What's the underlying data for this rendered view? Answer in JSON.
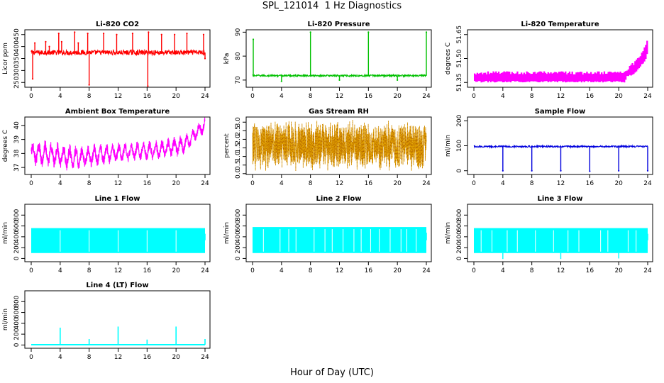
{
  "figure": {
    "title": "SPL_121014  1 Hz Diagnostics",
    "xlabel": "Hour of Day (UTC)"
  },
  "chart_data": [
    {
      "type": "line",
      "title": "Li-820 CO2",
      "ylabel": "Licor ppm",
      "color": "#ff0000",
      "xlim": [
        0,
        24
      ],
      "ylim": [
        230,
        470
      ],
      "x_ticks": [
        0,
        4,
        8,
        12,
        16,
        20,
        24
      ],
      "y_ticks": [
        250,
        300,
        350,
        400,
        450
      ],
      "series": [
        {
          "baseline": 375,
          "band": [
            365,
            385
          ],
          "spikes_up": [
            [
              0.5,
              415
            ],
            [
              2,
              420
            ],
            [
              2.5,
              400
            ],
            [
              3.8,
              455
            ],
            [
              4.2,
              420
            ],
            [
              6,
              460
            ],
            [
              6.5,
              415
            ],
            [
              7.8,
              455
            ],
            [
              10,
              455
            ],
            [
              11.8,
              450
            ],
            [
              14,
              455
            ],
            [
              16.2,
              460
            ],
            [
              18,
              450
            ],
            [
              19.8,
              450
            ],
            [
              21.5,
              455
            ],
            [
              23.8,
              450
            ]
          ],
          "spikes_down": [
            [
              0.2,
              265
            ],
            [
              8,
              240
            ],
            [
              16.1,
              235
            ],
            [
              24,
              350
            ]
          ]
        }
      ]
    },
    {
      "type": "line",
      "title": "Li-820 Pressure",
      "ylabel": "kPa",
      "color": "#00c000",
      "xlim": [
        0,
        24
      ],
      "ylim": [
        67,
        91
      ],
      "x_ticks": [
        0,
        4,
        8,
        12,
        16,
        20,
        24
      ],
      "y_ticks": [
        70,
        80,
        90
      ],
      "series": [
        {
          "baseline": 71.8,
          "band": [
            71.5,
            72.2
          ],
          "spikes_up": [
            [
              0.1,
              87
            ],
            [
              8,
              90
            ],
            [
              16,
              90
            ],
            [
              24,
              90
            ]
          ],
          "spikes_down": [
            [
              4,
              69.5
            ],
            [
              12,
              70
            ],
            [
              20,
              70
            ]
          ]
        }
      ]
    },
    {
      "type": "line",
      "title": "Li-820 Temperature",
      "ylabel": "degrees C",
      "color": "#ff00ff",
      "xlim": [
        0,
        24
      ],
      "ylim": [
        51.32,
        51.68
      ],
      "x_ticks": [
        0,
        4,
        8,
        12,
        16,
        20,
        24
      ],
      "y_ticks": [
        51.35,
        51.5,
        51.65
      ],
      "y_tick_labels": [
        "51.35",
        "51.50",
        "51.65"
      ],
      "series": [
        {
          "x": [
            0,
            20.8,
            21,
            22,
            22.8,
            23.3,
            23.7,
            24
          ],
          "low": [
            51.35,
            51.35,
            51.38,
            51.4,
            51.44,
            51.47,
            51.5,
            51.56
          ],
          "high": [
            51.42,
            51.42,
            51.44,
            51.48,
            51.52,
            51.56,
            51.6,
            51.67
          ]
        }
      ]
    },
    {
      "type": "line",
      "title": "Ambient Box Temperature",
      "ylabel": "degrees C",
      "color": "#ff00ff",
      "xlim": [
        0,
        24
      ],
      "ylim": [
        36.5,
        40.6
      ],
      "x_ticks": [
        0,
        4,
        8,
        12,
        16,
        20,
        24
      ],
      "y_ticks": [
        37,
        38,
        39,
        40
      ],
      "series": [
        {
          "x": [
            0,
            2,
            4,
            5.5,
            7,
            9,
            11,
            13,
            15,
            17,
            19,
            20,
            21,
            22,
            23,
            24
          ],
          "center": [
            38.0,
            38.0,
            37.8,
            37.7,
            37.7,
            37.9,
            38.0,
            38.1,
            38.2,
            38.2,
            38.4,
            38.5,
            38.6,
            39.0,
            39.6,
            40.0
          ],
          "amp": [
            0.7,
            0.8,
            0.8,
            0.8,
            0.7,
            0.7,
            0.6,
            0.6,
            0.6,
            0.6,
            0.6,
            0.6,
            0.6,
            0.5,
            0.5,
            0.5
          ]
        }
      ]
    },
    {
      "type": "line",
      "title": "Gas Stream RH",
      "ylabel": "percent",
      "color": "#e0a000",
      "xlim": [
        0,
        24
      ],
      "ylim": [
        -0.05,
        3.3
      ],
      "x_ticks": [
        0,
        4,
        8,
        12,
        16,
        20,
        24
      ],
      "y_ticks": [
        0,
        0.5,
        1,
        1.5,
        2,
        2.5,
        3
      ],
      "y_tick_labels": [
        "0.0",
        "0.5",
        "1.0",
        "1.5",
        "2.0",
        "2.5",
        "3.0"
      ],
      "series": [
        {
          "center": 1.65,
          "min": 0.1,
          "max": 3.2
        }
      ]
    },
    {
      "type": "line",
      "title": "Sample Flow",
      "ylabel": "ml/min",
      "color": "#0000dd",
      "xlim": [
        0,
        24
      ],
      "ylim": [
        -15,
        215
      ],
      "x_ticks": [
        0,
        4,
        8,
        12,
        16,
        20,
        24
      ],
      "y_ticks": [
        0,
        100,
        200
      ],
      "series": [
        {
          "baseline": 97,
          "band": [
            94,
            100
          ],
          "spikes_down": [
            [
              4,
              0
            ],
            [
              8,
              0
            ],
            [
              12,
              0
            ],
            [
              16,
              -2
            ],
            [
              20,
              0
            ],
            [
              24,
              0
            ]
          ]
        }
      ]
    },
    {
      "type": "line",
      "title": "Line 1 Flow",
      "ylabel": "ml/min",
      "color": "#00ffff",
      "xlim": [
        0,
        24
      ],
      "ylim": [
        -60,
        1000
      ],
      "x_ticks": [
        0,
        4,
        8,
        12,
        16,
        20,
        24
      ],
      "y_ticks": [
        0,
        200,
        400,
        600,
        800
      ],
      "series": [
        {
          "band": [
            100,
            560
          ],
          "gaps": [
            4,
            8,
            12,
            16,
            20
          ]
        }
      ]
    },
    {
      "type": "line",
      "title": "Line 2 Flow",
      "ylabel": "ml/min",
      "color": "#00ffff",
      "xlim": [
        0,
        24
      ],
      "ylim": [
        -60,
        1000
      ],
      "x_ticks": [
        0,
        4,
        8,
        12,
        16,
        20,
        24
      ],
      "y_ticks": [
        0,
        200,
        400,
        600,
        800
      ],
      "series": [
        {
          "band": [
            100,
            580
          ],
          "gaps": [
            1.5,
            3.8,
            5,
            6,
            8.5,
            10,
            11,
            12.5,
            14,
            15,
            16.3,
            17.5,
            19,
            20.5,
            21.3,
            22.6
          ]
        }
      ]
    },
    {
      "type": "line",
      "title": "Line 3 Flow",
      "ylabel": "ml/min",
      "color": "#00ffff",
      "xlim": [
        0,
        24
      ],
      "ylim": [
        -60,
        1000
      ],
      "x_ticks": [
        0,
        4,
        8,
        12,
        16,
        20,
        24
      ],
      "y_ticks": [
        0,
        200,
        400,
        600,
        800
      ],
      "series": [
        {
          "band": [
            100,
            560
          ],
          "gaps": [
            1,
            2.5,
            4.6,
            6,
            8.5,
            11,
            13,
            14.5,
            17.5,
            18.5,
            21.3,
            22.4
          ],
          "spikes_down": [
            [
              4,
              -10
            ],
            [
              12,
              -10
            ],
            [
              20,
              0
            ]
          ]
        }
      ]
    },
    {
      "type": "line",
      "title": "Line 4 (LT) Flow",
      "ylabel": "ml/min",
      "color": "#00ffff",
      "xlim": [
        0,
        24
      ],
      "ylim": [
        -60,
        1000
      ],
      "x_ticks": [
        0,
        4,
        8,
        12,
        16,
        20,
        24
      ],
      "y_ticks": [
        0,
        200,
        400,
        600,
        800
      ],
      "series": [
        {
          "baseline": 5,
          "spikes_up": [
            [
              4,
              320
            ],
            [
              8,
              110
            ],
            [
              12,
              340
            ],
            [
              16,
              100
            ],
            [
              20,
              340
            ],
            [
              24,
              110
            ]
          ]
        }
      ]
    }
  ]
}
